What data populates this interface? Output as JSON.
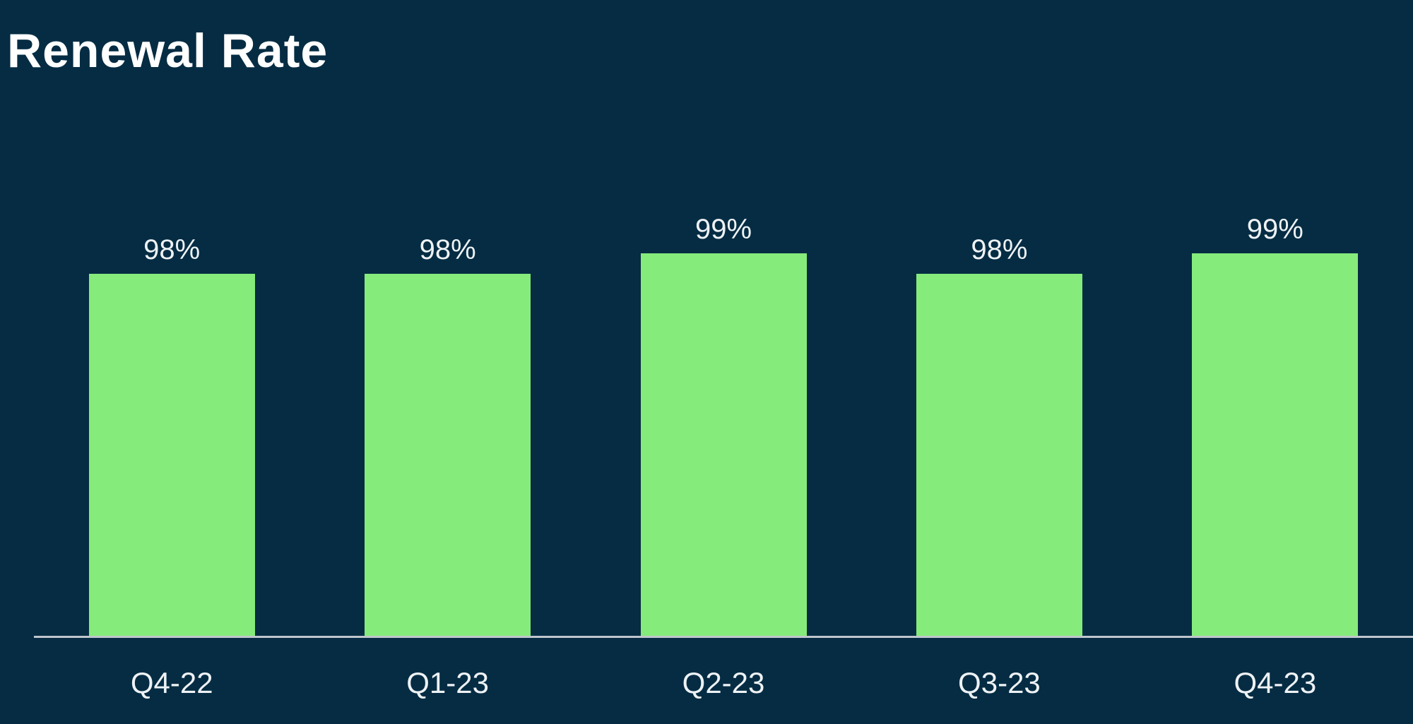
{
  "chart_data": {
    "type": "bar",
    "title": "Renewal Rate",
    "categories": [
      "Q4-22",
      "Q1-23",
      "Q2-23",
      "Q3-23",
      "Q4-23"
    ],
    "values": [
      98,
      98,
      99,
      98,
      99
    ],
    "value_labels": [
      "98%",
      "98%",
      "99%",
      "98%",
      "99%"
    ],
    "unit": "%",
    "xlabel": "",
    "ylabel": "",
    "ylim": [
      80,
      100
    ],
    "grid": false,
    "legend": false,
    "axis_ticks_visible": false,
    "colors": {
      "background": "#052c43",
      "bar": "#85eb7b",
      "title_text": "#ffffff",
      "label_text": "#eef2f5",
      "axis_line": "#bfc6cc"
    }
  }
}
